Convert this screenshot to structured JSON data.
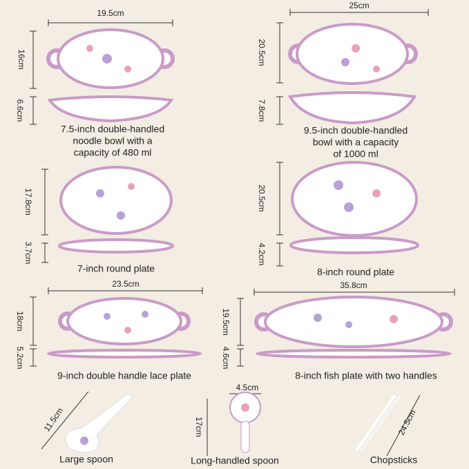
{
  "items": [
    {
      "width": "19.5cm",
      "height": "16cm",
      "depth": "6.6cm",
      "caption": [
        "7.5-inch double-handled",
        "noodle bowl with a",
        "capacity of 480 ml"
      ]
    },
    {
      "width": "25cm",
      "height": "20.5cm",
      "depth": "7.8cm",
      "caption": [
        "9.5-inch double-handled",
        "bowl with a capacity",
        "of 1000 ml"
      ]
    },
    {
      "height": "17.8cm",
      "depth": "3.7cm",
      "caption": [
        "7-inch round plate"
      ]
    },
    {
      "height": "20.5cm",
      "depth": "4.2cm",
      "caption": [
        "8-inch round plate"
      ]
    },
    {
      "width": "23.5cm",
      "height": "18cm",
      "depth": "5.2cm",
      "caption": [
        "9-inch double handle lace plate"
      ]
    },
    {
      "width": "35.8cm",
      "height": "19.5cm",
      "depth": "4.6cm",
      "caption": [
        "8-inch fish plate with two handles"
      ]
    },
    {
      "length": "11.5cm",
      "caption": [
        "Large spoon"
      ]
    },
    {
      "width": "4.5cm",
      "length": "17cm",
      "caption": [
        "Long-handled spoon"
      ]
    },
    {
      "length": "24.5cm",
      "caption": [
        "Chopsticks"
      ]
    }
  ]
}
